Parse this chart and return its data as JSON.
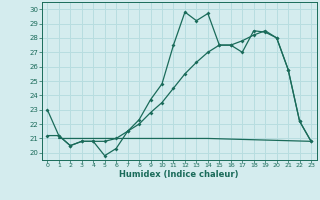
{
  "xlabel": "Humidex (Indice chaleur)",
  "xlim": [
    -0.5,
    23.5
  ],
  "ylim": [
    19.5,
    30.5
  ],
  "yticks": [
    20,
    21,
    22,
    23,
    24,
    25,
    26,
    27,
    28,
    29,
    30
  ],
  "xticks": [
    0,
    1,
    2,
    3,
    4,
    5,
    6,
    7,
    8,
    9,
    10,
    11,
    12,
    13,
    14,
    15,
    16,
    17,
    18,
    19,
    20,
    21,
    22,
    23
  ],
  "line_color": "#1a6b5a",
  "bg_color": "#d4ecee",
  "grid_color": "#b8dde0",
  "line1_x": [
    0,
    1,
    2,
    3,
    4,
    5,
    6,
    7,
    8,
    9,
    10,
    11,
    12,
    13,
    14,
    15,
    16,
    17,
    18,
    19,
    20,
    21,
    22,
    23
  ],
  "line1_y": [
    23.0,
    21.2,
    20.5,
    20.8,
    20.8,
    19.8,
    20.3,
    21.5,
    22.3,
    23.7,
    24.8,
    27.5,
    29.8,
    29.2,
    29.7,
    27.5,
    27.5,
    27.0,
    28.5,
    28.4,
    28.0,
    25.8,
    22.2,
    20.8
  ],
  "line2_x": [
    1,
    14,
    23
  ],
  "line2_y": [
    21.0,
    21.0,
    20.8
  ],
  "line3_x": [
    0,
    1,
    2,
    3,
    4,
    5,
    6,
    7,
    8,
    9,
    10,
    11,
    12,
    13,
    14,
    15,
    16,
    17,
    18,
    19,
    20,
    21,
    22,
    23
  ],
  "line3_y": [
    21.2,
    21.2,
    20.5,
    20.8,
    20.8,
    20.8,
    21.0,
    21.5,
    22.0,
    22.8,
    23.5,
    24.5,
    25.5,
    26.3,
    27.0,
    27.5,
    27.5,
    27.8,
    28.2,
    28.5,
    28.0,
    25.8,
    22.2,
    20.8
  ]
}
